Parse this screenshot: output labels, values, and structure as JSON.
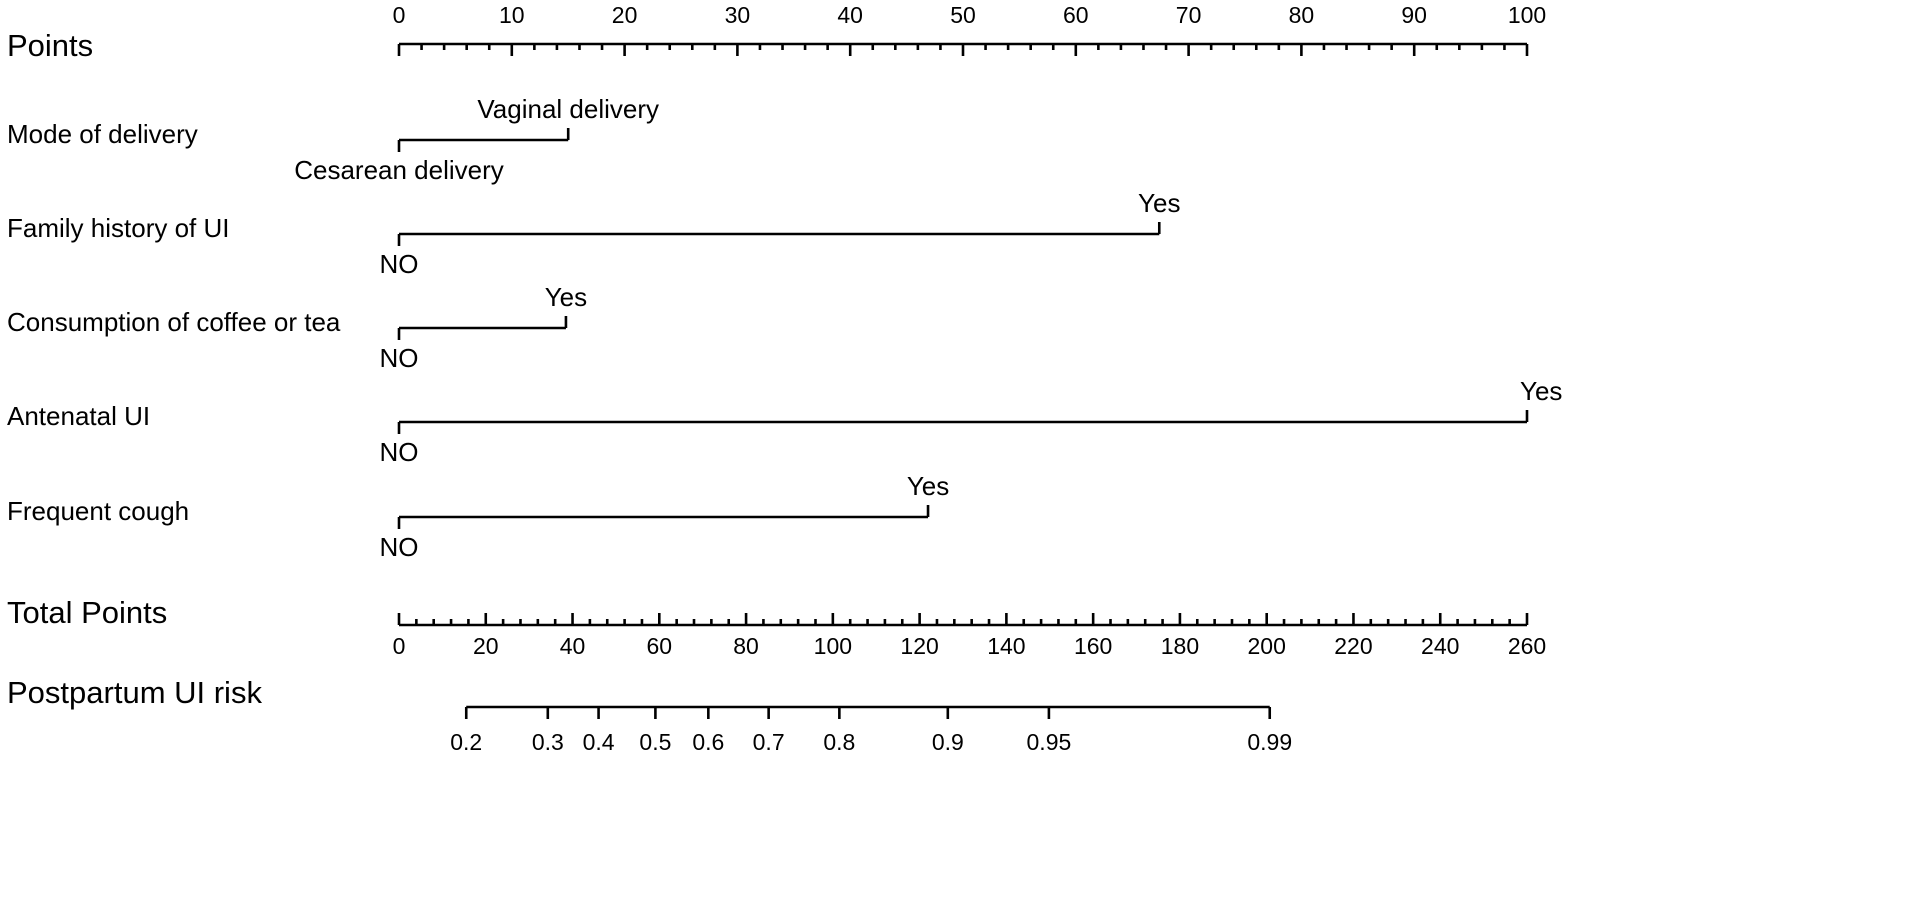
{
  "chart_data": {
    "type": "nomogram",
    "points_axis": {
      "label": "Points",
      "range": [
        0,
        100
      ],
      "major_ticks": [
        0,
        10,
        20,
        30,
        40,
        50,
        60,
        70,
        80,
        90,
        100
      ],
      "minor_step": 2
    },
    "variables": [
      {
        "label": "Mode of delivery",
        "levels": [
          {
            "name": "Cesarean delivery",
            "points": 0
          },
          {
            "name": "Vaginal delivery",
            "points": 15
          }
        ]
      },
      {
        "label": "Family history of UI",
        "levels": [
          {
            "name": "NO",
            "points": 0
          },
          {
            "name": "Yes",
            "points": 67.4
          }
        ]
      },
      {
        "label": "Consumption of coffee or tea",
        "levels": [
          {
            "name": "NO",
            "points": 0
          },
          {
            "name": "Yes",
            "points": 14.8
          }
        ]
      },
      {
        "label": "Antenatal UI",
        "levels": [
          {
            "name": "NO",
            "points": 0
          },
          {
            "name": "Yes",
            "points": 100
          }
        ]
      },
      {
        "label": "Frequent cough",
        "levels": [
          {
            "name": "NO",
            "points": 0
          },
          {
            "name": "Yes",
            "points": 46.9
          }
        ]
      }
    ],
    "total_points_axis": {
      "label": "Total Points",
      "range": [
        0,
        260
      ],
      "major_ticks": [
        0,
        20,
        40,
        60,
        80,
        100,
        120,
        140,
        160,
        180,
        200,
        220,
        240,
        260
      ],
      "minor_step": 4
    },
    "risk_axis": {
      "label": "Postpartum UI risk",
      "ticks": [
        {
          "label": "0.2",
          "total_points": 15.5
        },
        {
          "label": "0.3",
          "total_points": 34.3
        },
        {
          "label": "0.4",
          "total_points": 46.0
        },
        {
          "label": "0.5",
          "total_points": 59.1
        },
        {
          "label": "0.6",
          "total_points": 71.3
        },
        {
          "label": "0.7",
          "total_points": 85.2
        },
        {
          "label": "0.8",
          "total_points": 101.5
        },
        {
          "label": "0.9",
          "total_points": 126.5
        },
        {
          "label": "0.95",
          "total_points": 149.8
        },
        {
          "label": "0.99",
          "total_points": 200.7
        }
      ]
    }
  }
}
